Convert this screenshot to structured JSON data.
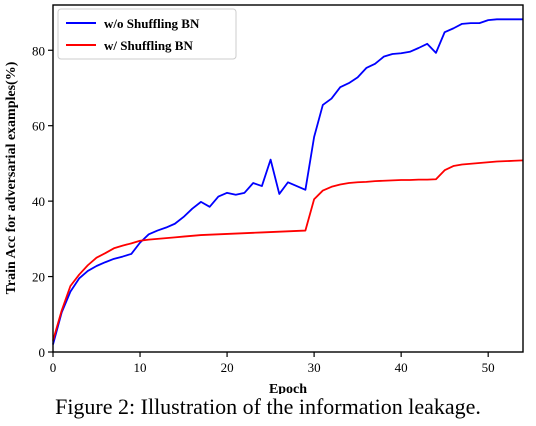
{
  "caption": "Figure 2: Illustration of the information leakage.",
  "chart_data": {
    "type": "line",
    "xlabel": "Epoch",
    "ylabel": "Train Acc for adversarial examples(%)",
    "xlim": [
      0,
      54
    ],
    "ylim": [
      0,
      92
    ],
    "xticks": [
      0,
      10,
      20,
      30,
      40,
      50
    ],
    "yticks": [
      0,
      20,
      40,
      60,
      80
    ],
    "grid": false,
    "legend_position": "top-left",
    "x": [
      0,
      1,
      2,
      3,
      4,
      5,
      6,
      7,
      8,
      9,
      10,
      11,
      12,
      13,
      14,
      15,
      16,
      17,
      18,
      19,
      20,
      21,
      22,
      23,
      24,
      25,
      26,
      27,
      28,
      29,
      30,
      31,
      32,
      33,
      34,
      35,
      36,
      37,
      38,
      39,
      40,
      41,
      42,
      43,
      44,
      45,
      46,
      47,
      48,
      49,
      50,
      51,
      52,
      53,
      54
    ],
    "series": [
      {
        "name": "w/o Shuffling BN",
        "color": "#0000ff",
        "values": [
          2,
          10.5,
          16,
          19.5,
          21.5,
          22.8,
          23.8,
          24.7,
          25.3,
          26,
          29,
          31.2,
          32.2,
          33,
          34,
          35.8,
          38,
          39.8,
          38.5,
          41.2,
          42.2,
          41.7,
          42.2,
          44.8,
          44,
          51,
          41.9,
          45,
          44,
          43,
          57,
          65.5,
          67.2,
          70.2,
          71.3,
          72.8,
          75.3,
          76.4,
          78.3,
          79,
          79.2,
          79.6,
          80.6,
          81.7,
          79.3,
          84.8,
          85.8,
          87,
          87.2,
          87.2,
          88,
          88.2,
          88.2,
          88.2,
          88.2
        ]
      },
      {
        "name": "w/ Shuffling BN",
        "color": "#ff0000",
        "values": [
          3,
          11,
          17.5,
          20.5,
          23,
          25,
          26.2,
          27.5,
          28.2,
          28.8,
          29.5,
          29.8,
          30,
          30.2,
          30.4,
          30.6,
          30.8,
          31,
          31.1,
          31.2,
          31.3,
          31.4,
          31.5,
          31.6,
          31.7,
          31.8,
          31.9,
          32,
          32.1,
          32.2,
          40.5,
          42.8,
          43.8,
          44.4,
          44.8,
          45.0,
          45.1,
          45.3,
          45.4,
          45.5,
          45.6,
          45.6,
          45.7,
          45.7,
          45.8,
          48.2,
          49.3,
          49.7,
          49.9,
          50.1,
          50.3,
          50.5,
          50.6,
          50.7,
          50.8
        ]
      }
    ]
  }
}
